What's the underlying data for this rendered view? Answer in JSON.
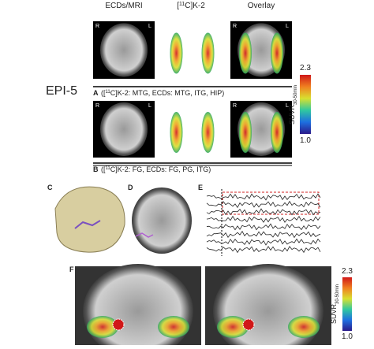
{
  "panel_top": {
    "columns": {
      "mri": "ECDs/MRI",
      "tracer": {
        "pre": "[",
        "sup": "11",
        "post": "C]K-2"
      },
      "overlay": "Overlay"
    },
    "side_left": "R",
    "side_right": "L",
    "patient": "EPI-5",
    "row_a": {
      "letter": "A",
      "caption": {
        "pre": "([",
        "sup": "11",
        "post": "C]K-2: MTG, ECDs: MTG, ITG, HIP)"
      }
    },
    "row_b": {
      "letter": "B",
      "caption": {
        "pre": "([",
        "sup": "11",
        "post": "C]K-2: FG, ECDs: FG, PG, ITG)"
      }
    },
    "colorbar": {
      "max": "2.3",
      "min": "1.0",
      "label": "SUVR",
      "label_sub": "30-50min"
    }
  },
  "panel_c": {
    "letter": "C"
  },
  "panel_d": {
    "letter": "D"
  },
  "panel_e": {
    "letter": "E"
  },
  "panel_f": {
    "letter": "F",
    "colorbar": {
      "max": "2.3",
      "min": "1.0",
      "label": "SUVR",
      "label_sub": "30-50min"
    }
  }
}
